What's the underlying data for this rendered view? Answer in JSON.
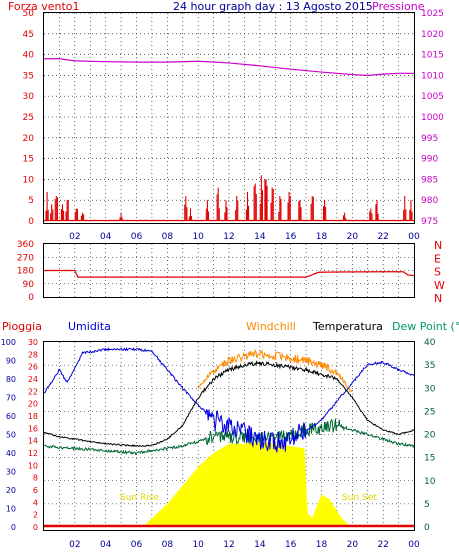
{
  "header": {
    "title": "24 hour graph day : 13 Agosto 2015",
    "left_label": "Forza vento1",
    "right_label": "Pressione"
  },
  "colors": {
    "red": "#e00000",
    "magenta": "#cc00cc",
    "navy": "#000099",
    "blue": "#0000dd",
    "orange": "#ff8800",
    "green": "#006633",
    "teal": "#009966",
    "yellow": "#ffff00",
    "sun_text": "#dddd00"
  },
  "x_ticks": [
    "02",
    "04",
    "06",
    "08",
    "10",
    "12",
    "14",
    "16",
    "18",
    "20",
    "22",
    "00"
  ],
  "chart_data": [
    {
      "type": "bar",
      "left_axis": {
        "label": "Forza vento1",
        "ticks": [
          0,
          5,
          10,
          15,
          20,
          25,
          30,
          35,
          40,
          45,
          50
        ],
        "range": [
          0,
          50
        ]
      },
      "right_axis": {
        "label": "Pressione",
        "ticks": [
          975,
          980,
          985,
          990,
          995,
          1000,
          1005,
          1010,
          1015,
          1020,
          1025
        ],
        "range": [
          975,
          1025
        ]
      },
      "wind_peaks": [
        {
          "hour": 0.2,
          "value": 7
        },
        {
          "hour": 0.5,
          "value": 4
        },
        {
          "hour": 0.8,
          "value": 6
        },
        {
          "hour": 1.2,
          "value": 4
        },
        {
          "hour": 1.5,
          "value": 5
        },
        {
          "hour": 2.1,
          "value": 3
        },
        {
          "hour": 2.5,
          "value": 2
        },
        {
          "hour": 5.0,
          "value": 2
        },
        {
          "hour": 9.2,
          "value": 6
        },
        {
          "hour": 9.5,
          "value": 3
        },
        {
          "hour": 10.6,
          "value": 5
        },
        {
          "hour": 11.3,
          "value": 8
        },
        {
          "hour": 11.8,
          "value": 5
        },
        {
          "hour": 12.5,
          "value": 6
        },
        {
          "hour": 13.2,
          "value": 7
        },
        {
          "hour": 13.7,
          "value": 9
        },
        {
          "hour": 14.1,
          "value": 11
        },
        {
          "hour": 14.4,
          "value": 10
        },
        {
          "hour": 14.8,
          "value": 8
        },
        {
          "hour": 15.3,
          "value": 6
        },
        {
          "hour": 15.9,
          "value": 7
        },
        {
          "hour": 16.6,
          "value": 5
        },
        {
          "hour": 17.4,
          "value": 6
        },
        {
          "hour": 18.2,
          "value": 5
        },
        {
          "hour": 19.5,
          "value": 2
        },
        {
          "hour": 21.2,
          "value": 3
        },
        {
          "hour": 21.6,
          "value": 5
        },
        {
          "hour": 23.4,
          "value": 6
        },
        {
          "hour": 23.8,
          "value": 5
        }
      ],
      "pressure": [
        {
          "hour": 0,
          "value": 1014
        },
        {
          "hour": 1,
          "value": 1014
        },
        {
          "hour": 2,
          "value": 1013.5
        },
        {
          "hour": 4,
          "value": 1013.3
        },
        {
          "hour": 6,
          "value": 1013.2
        },
        {
          "hour": 8,
          "value": 1013.2
        },
        {
          "hour": 10,
          "value": 1013.4
        },
        {
          "hour": 12,
          "value": 1013
        },
        {
          "hour": 14,
          "value": 1012.3
        },
        {
          "hour": 16,
          "value": 1011.5
        },
        {
          "hour": 18,
          "value": 1010.8
        },
        {
          "hour": 20,
          "value": 1010.2
        },
        {
          "hour": 21,
          "value": 1010
        },
        {
          "hour": 22,
          "value": 1010.3
        },
        {
          "hour": 23,
          "value": 1010.5
        },
        {
          "hour": 24,
          "value": 1010.5
        }
      ]
    },
    {
      "type": "line",
      "series_name": "wind direction",
      "left_axis": {
        "ticks": [
          0,
          90,
          180,
          270,
          360
        ],
        "range": [
          0,
          360
        ]
      },
      "right_axis": {
        "ticks": [
          "N",
          "W",
          "S",
          "E",
          "N"
        ]
      },
      "direction": [
        {
          "hour": 0,
          "value": 180
        },
        {
          "hour": 2,
          "value": 180
        },
        {
          "hour": 2.2,
          "value": 135
        },
        {
          "hour": 17,
          "value": 135
        },
        {
          "hour": 17.8,
          "value": 168
        },
        {
          "hour": 19,
          "value": 170
        },
        {
          "hour": 23.3,
          "value": 172
        },
        {
          "hour": 23.6,
          "value": 150
        },
        {
          "hour": 24,
          "value": 145
        }
      ]
    },
    {
      "type": "area",
      "legend": [
        "Pioggia",
        "Umidita",
        "Windchill",
        "Temperatura",
        "Dew Point (°C"
      ],
      "humidity_axis": {
        "ticks": [
          0,
          10,
          20,
          30,
          40,
          50,
          60,
          70,
          80,
          90,
          100
        ],
        "range": [
          0,
          100
        ]
      },
      "rain_axis": {
        "ticks": [
          0,
          2,
          4,
          6,
          8,
          10,
          12,
          14,
          16,
          18,
          20,
          22,
          24,
          26,
          28,
          30
        ],
        "range": [
          0,
          30
        ]
      },
      "temp_axis": {
        "ticks": [
          0,
          5,
          10,
          15,
          20,
          25,
          30,
          35,
          40
        ],
        "range": [
          0,
          40
        ]
      },
      "annotations": [
        "Sun Rise",
        "Sun Set"
      ],
      "humidity": [
        {
          "hour": 0,
          "value": 72
        },
        {
          "hour": 1,
          "value": 85
        },
        {
          "hour": 1.5,
          "value": 78
        },
        {
          "hour": 2.5,
          "value": 94
        },
        {
          "hour": 4,
          "value": 96
        },
        {
          "hour": 5,
          "value": 96
        },
        {
          "hour": 6,
          "value": 96
        },
        {
          "hour": 7,
          "value": 95
        },
        {
          "hour": 8,
          "value": 85
        },
        {
          "hour": 9,
          "value": 75
        },
        {
          "hour": 10,
          "value": 66
        },
        {
          "hour": 11,
          "value": 58
        },
        {
          "hour": 12,
          "value": 53
        },
        {
          "hour": 13,
          "value": 50
        },
        {
          "hour": 14,
          "value": 47
        },
        {
          "hour": 15,
          "value": 45
        },
        {
          "hour": 16,
          "value": 47
        },
        {
          "hour": 17,
          "value": 52
        },
        {
          "hour": 18,
          "value": 58
        },
        {
          "hour": 19,
          "value": 68
        },
        {
          "hour": 20,
          "value": 78
        },
        {
          "hour": 21,
          "value": 88
        },
        {
          "hour": 22,
          "value": 89
        },
        {
          "hour": 23,
          "value": 85
        },
        {
          "hour": 24,
          "value": 82
        }
      ],
      "temperature": [
        {
          "hour": 0,
          "value": 20.5
        },
        {
          "hour": 1,
          "value": 19.5
        },
        {
          "hour": 2,
          "value": 19
        },
        {
          "hour": 4,
          "value": 18
        },
        {
          "hour": 6,
          "value": 17.5
        },
        {
          "hour": 7,
          "value": 17.6
        },
        {
          "hour": 8,
          "value": 19
        },
        {
          "hour": 9,
          "value": 22
        },
        {
          "hour": 10,
          "value": 28
        },
        {
          "hour": 11,
          "value": 32
        },
        {
          "hour": 12,
          "value": 34
        },
        {
          "hour": 13,
          "value": 35
        },
        {
          "hour": 14,
          "value": 35.5
        },
        {
          "hour": 15,
          "value": 35
        },
        {
          "hour": 16,
          "value": 34.5
        },
        {
          "hour": 17,
          "value": 34
        },
        {
          "hour": 18,
          "value": 33
        },
        {
          "hour": 19,
          "value": 32
        },
        {
          "hour": 20,
          "value": 28
        },
        {
          "hour": 21,
          "value": 23
        },
        {
          "hour": 22,
          "value": 21
        },
        {
          "hour": 23,
          "value": 20
        },
        {
          "hour": 24,
          "value": 21
        }
      ],
      "windchill": [
        {
          "hour": 10,
          "value": 30
        },
        {
          "hour": 11,
          "value": 34
        },
        {
          "hour": 12,
          "value": 36
        },
        {
          "hour": 13,
          "value": 37
        },
        {
          "hour": 14,
          "value": 37.5
        },
        {
          "hour": 15,
          "value": 37
        },
        {
          "hour": 16,
          "value": 36.5
        },
        {
          "hour": 17,
          "value": 36
        },
        {
          "hour": 18,
          "value": 35
        },
        {
          "hour": 19,
          "value": 33.5
        },
        {
          "hour": 20,
          "value": 29
        }
      ],
      "dew_point": [
        {
          "hour": 0,
          "value": 17.5
        },
        {
          "hour": 1,
          "value": 17.2
        },
        {
          "hour": 2,
          "value": 17
        },
        {
          "hour": 4,
          "value": 16.5
        },
        {
          "hour": 6,
          "value": 16
        },
        {
          "hour": 7,
          "value": 16.5
        },
        {
          "hour": 8,
          "value": 17
        },
        {
          "hour": 9,
          "value": 17.5
        },
        {
          "hour": 10,
          "value": 18.5
        },
        {
          "hour": 11,
          "value": 19.5
        },
        {
          "hour": 12,
          "value": 19.5
        },
        {
          "hour": 13,
          "value": 19.5
        },
        {
          "hour": 14,
          "value": 19
        },
        {
          "hour": 15,
          "value": 19.5
        },
        {
          "hour": 16,
          "value": 20
        },
        {
          "hour": 17,
          "value": 21
        },
        {
          "hour": 18,
          "value": 21.5
        },
        {
          "hour": 19,
          "value": 22
        },
        {
          "hour": 20,
          "value": 21
        },
        {
          "hour": 21,
          "value": 20
        },
        {
          "hour": 22,
          "value": 19
        },
        {
          "hour": 23,
          "value": 18
        },
        {
          "hour": 24,
          "value": 17.5
        }
      ],
      "solar": [
        {
          "hour": 6.4,
          "value": 0
        },
        {
          "hour": 8,
          "value": 5
        },
        {
          "hour": 10,
          "value": 13
        },
        {
          "hour": 11,
          "value": 16
        },
        {
          "hour": 12,
          "value": 18
        },
        {
          "hour": 13,
          "value": 18
        },
        {
          "hour": 14,
          "value": 18.5
        },
        {
          "hour": 15,
          "value": 18
        },
        {
          "hour": 16,
          "value": 17.5
        },
        {
          "hour": 16.9,
          "value": 17
        },
        {
          "hour": 17.1,
          "value": 3
        },
        {
          "hour": 17.4,
          "value": 2
        },
        {
          "hour": 18,
          "value": 7
        },
        {
          "hour": 18.5,
          "value": 6
        },
        {
          "hour": 19.3,
          "value": 2
        },
        {
          "hour": 19.9,
          "value": 0
        }
      ]
    }
  ]
}
